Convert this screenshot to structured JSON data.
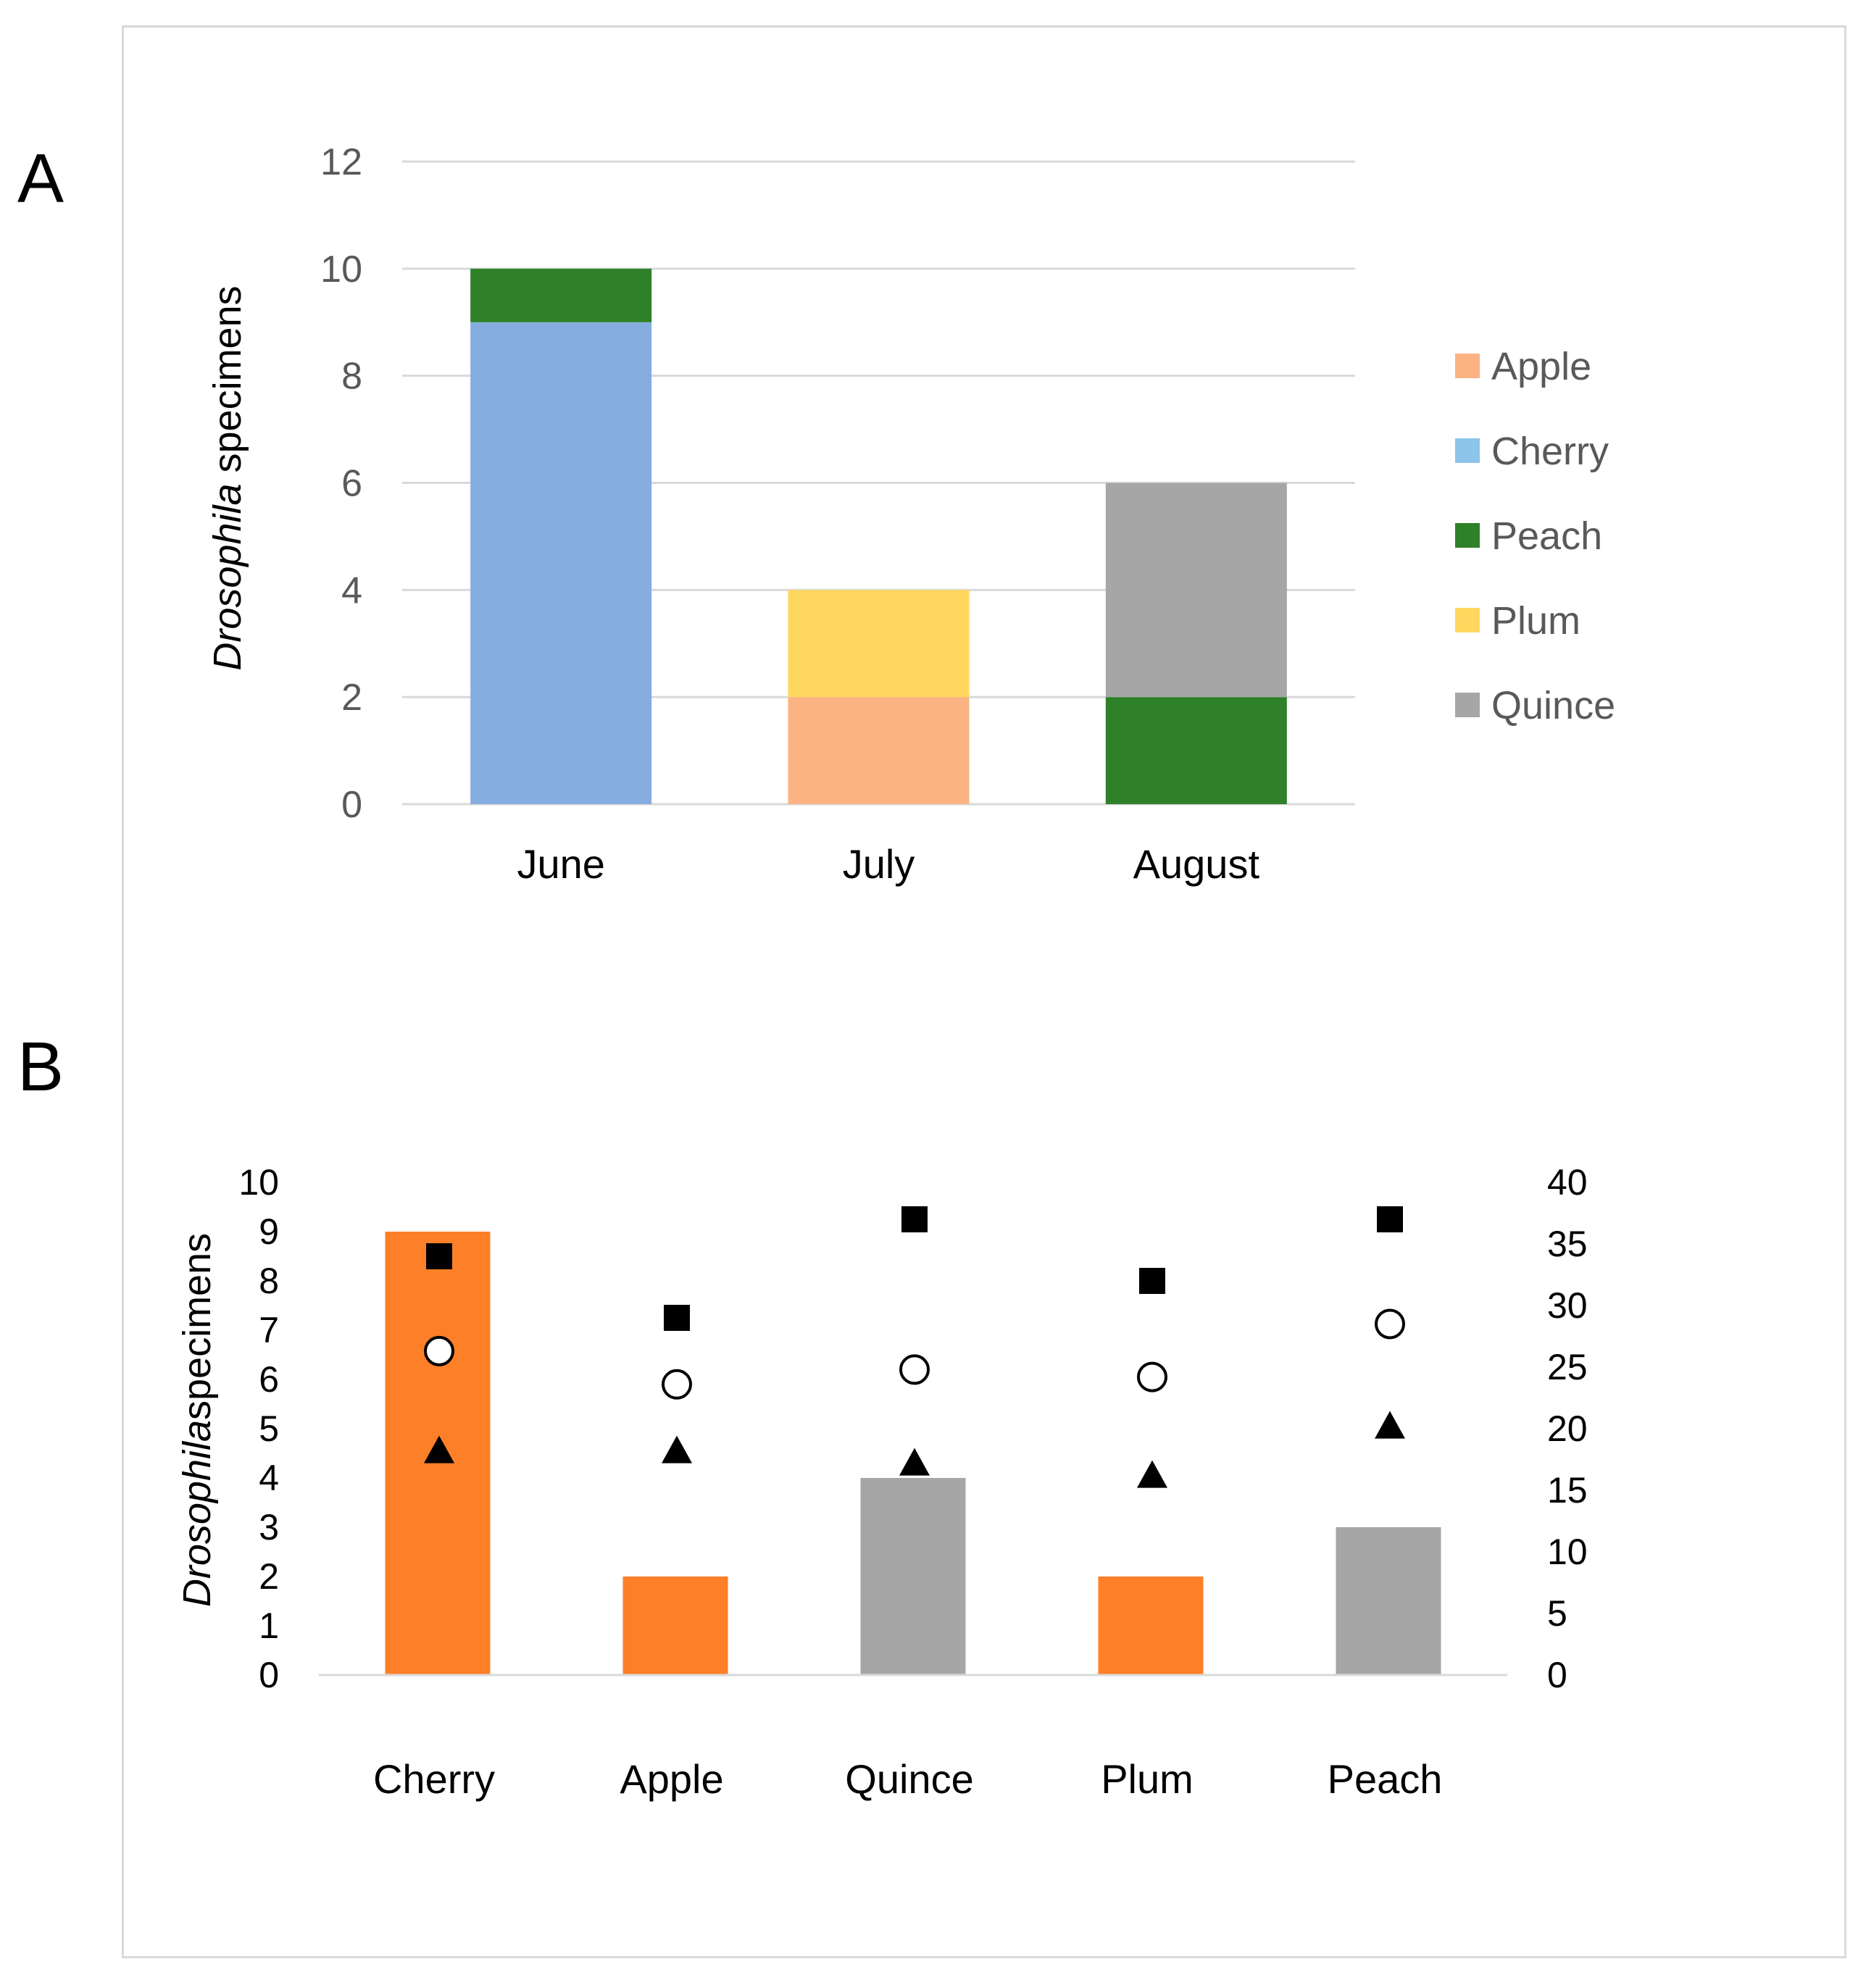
{
  "chart_data": [
    {
      "panel": "A",
      "type": "bar",
      "stacked": true,
      "categories": [
        "June",
        "July",
        "August"
      ],
      "series": [
        {
          "name": "Apple",
          "color": "#fbb383",
          "values": [
            0,
            2,
            0
          ]
        },
        {
          "name": "Cherry",
          "color": "#85addf",
          "values": [
            9,
            0,
            0
          ]
        },
        {
          "name": "Peach",
          "color": "#2e8029",
          "values": [
            1,
            0,
            2
          ]
        },
        {
          "name": "Plum",
          "color": "#ffd75e",
          "values": [
            0,
            2,
            0
          ]
        },
        {
          "name": "Quince",
          "color": "#a6a6a6",
          "values": [
            0,
            0,
            4
          ]
        }
      ],
      "legend": [
        {
          "name": "Apple",
          "color": "#fbb383"
        },
        {
          "name": "Cherry",
          "color": "#8dc4ea"
        },
        {
          "name": "Peach",
          "color": "#2e8029"
        },
        {
          "name": "Plum",
          "color": "#ffd75e"
        },
        {
          "name": "Quince",
          "color": "#a6a6a6"
        }
      ],
      "ylabel_italic": "Drosophila",
      "ylabel_rest": " specimens",
      "ylim": [
        0,
        12
      ],
      "yticks": [
        "0",
        "2",
        "4",
        "6",
        "8",
        "10",
        "12"
      ],
      "grid": true,
      "legend_position": "right"
    },
    {
      "panel": "B",
      "type": "bar",
      "categories": [
        "Cherry",
        "Apple",
        "Quince",
        "Plum",
        "Peach"
      ],
      "values": [
        9,
        2,
        4,
        2,
        3
      ],
      "bar_colors": [
        "#fd7f28",
        "#fd7f28",
        "#a6a6a6",
        "#fd7f28",
        "#a6a6a6"
      ],
      "ylabel_italic": "Drosophila",
      "ylabel_rest": "specimens",
      "ylim": [
        0,
        10
      ],
      "yticks": [
        "0",
        "1",
        "2",
        "3",
        "4",
        "5",
        "6",
        "7",
        "8",
        "9",
        "10"
      ],
      "y2lim": [
        0,
        40
      ],
      "y2ticks": [
        "0",
        "5",
        "10",
        "15",
        "20",
        "25",
        "30",
        "35",
        "40"
      ],
      "secondary_series": [
        {
          "name": "square",
          "marker": "filled-square",
          "values": [
            34,
            29,
            37,
            32,
            37
          ]
        },
        {
          "name": "circle",
          "marker": "open-circle",
          "values": [
            26.3,
            23.6,
            24.8,
            24.2,
            28.5
          ]
        },
        {
          "name": "triangle",
          "marker": "filled-triangle",
          "values": [
            18.2,
            18.2,
            17.2,
            16.2,
            20.2
          ]
        }
      ]
    }
  ],
  "labels": {
    "panel_a": "A",
    "panel_b": "B"
  }
}
